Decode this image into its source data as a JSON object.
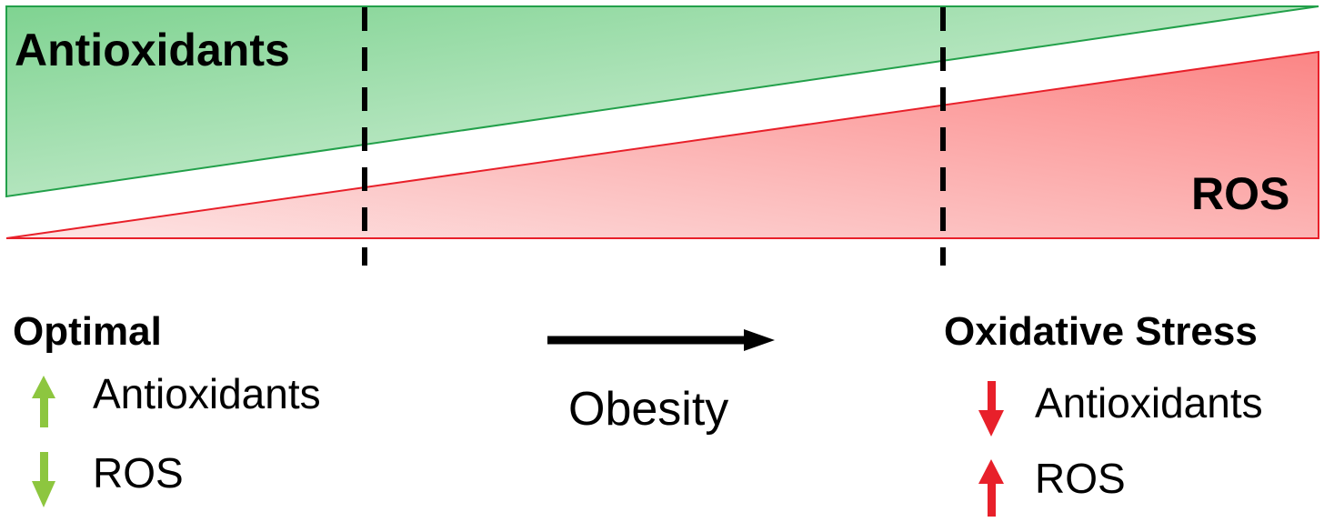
{
  "bars": {
    "antioxidants_label": "Antioxidants",
    "ros_label": "ROS",
    "antioxidants_color": "#22a04a",
    "ros_color": "#e8202a"
  },
  "transition": {
    "label": "Obesity"
  },
  "optimal": {
    "heading": "Optimal",
    "items": [
      {
        "label": "Antioxidants",
        "direction": "up",
        "icon": "arrow-up-icon",
        "color": "#8dc63f"
      },
      {
        "label": "ROS",
        "direction": "down",
        "icon": "arrow-down-icon",
        "color": "#8dc63f"
      }
    ]
  },
  "oxidative_stress": {
    "heading": "Oxidative Stress",
    "items": [
      {
        "label": "Antioxidants",
        "direction": "down",
        "icon": "arrow-down-icon",
        "color": "#e8202a"
      },
      {
        "label": "ROS",
        "direction": "up",
        "icon": "arrow-up-icon",
        "color": "#e8202a"
      }
    ]
  }
}
